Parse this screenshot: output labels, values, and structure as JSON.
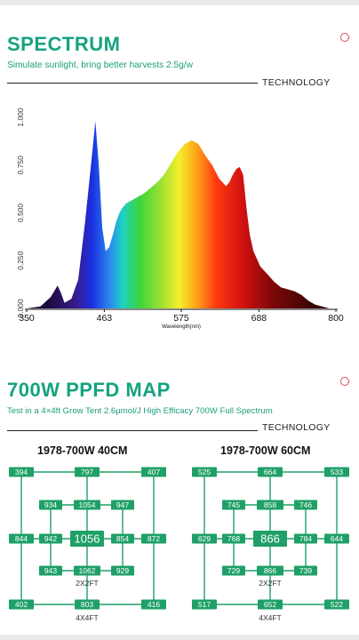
{
  "spectrum": {
    "title": "SPECTRUM",
    "subtitle": "Simulate sunlight, bring better harvests 2.5g/w",
    "technology_label": "TECHNOLOGY"
  },
  "chart_data": {
    "type": "area",
    "x_ticks": [
      350,
      463,
      575,
      688,
      800
    ],
    "y_ticks": [
      "0.000",
      "0.250",
      "0.500",
      "0.750",
      "1.000"
    ],
    "xlabel": "Wavelength(nm)",
    "xlim": [
      350,
      800
    ],
    "ylim": [
      0,
      1
    ],
    "x": [
      350,
      370,
      385,
      395,
      400,
      405,
      415,
      425,
      435,
      445,
      450,
      455,
      460,
      465,
      470,
      475,
      480,
      485,
      490,
      495,
      500,
      510,
      520,
      530,
      540,
      550,
      560,
      570,
      580,
      590,
      600,
      610,
      620,
      630,
      640,
      645,
      650,
      655,
      660,
      665,
      670,
      675,
      680,
      690,
      700,
      710,
      720,
      730,
      740,
      750,
      760,
      770,
      780,
      790
    ],
    "values": [
      0,
      0.01,
      0.06,
      0.12,
      0.08,
      0.03,
      0.05,
      0.15,
      0.45,
      0.8,
      0.98,
      0.75,
      0.42,
      0.3,
      0.32,
      0.38,
      0.45,
      0.5,
      0.53,
      0.55,
      0.56,
      0.58,
      0.6,
      0.63,
      0.66,
      0.7,
      0.76,
      0.82,
      0.86,
      0.88,
      0.86,
      0.8,
      0.75,
      0.68,
      0.64,
      0.66,
      0.7,
      0.73,
      0.74,
      0.7,
      0.52,
      0.38,
      0.3,
      0.22,
      0.18,
      0.14,
      0.11,
      0.1,
      0.09,
      0.07,
      0.04,
      0.02,
      0.01,
      0
    ],
    "gradient_stops": [
      {
        "nm": 380,
        "color": "#1a0a3a"
      },
      {
        "nm": 420,
        "color": "#3a1a8a"
      },
      {
        "nm": 445,
        "color": "#1b2fe0"
      },
      {
        "nm": 470,
        "color": "#2a86f0"
      },
      {
        "nm": 490,
        "color": "#1fd2c0"
      },
      {
        "nm": 515,
        "color": "#3dd63b"
      },
      {
        "nm": 545,
        "color": "#9be033"
      },
      {
        "nm": 572,
        "color": "#f5ef2a"
      },
      {
        "nm": 600,
        "color": "#ff9a17"
      },
      {
        "nm": 625,
        "color": "#ff3b12"
      },
      {
        "nm": 665,
        "color": "#d01010"
      },
      {
        "nm": 710,
        "color": "#7a0808"
      },
      {
        "nm": 780,
        "color": "#2a0202"
      }
    ]
  },
  "ppfd": {
    "title": "700W PPFD MAP",
    "subtitle": "Test in a 4×4ft Grow Tent 2.6μmol/J High Efficacy 700W Full Spectrum",
    "technology_label": "TECHNOLOGY",
    "maps": [
      {
        "title": "1978-700W 40CM",
        "corners": [
          "394",
          "407",
          "402",
          "416"
        ],
        "edges": [
          "797",
          "844",
          "872",
          "803"
        ],
        "inner_corners": [
          "934",
          "947",
          "943",
          "929"
        ],
        "inner_edges": [
          "1054",
          "942",
          "854",
          "1062"
        ],
        "center": "1056",
        "inner_label": "2X2FT",
        "outer_label": "4X4FT"
      },
      {
        "title": "1978-700W 60CM",
        "corners": [
          "525",
          "533",
          "517",
          "522"
        ],
        "edges": [
          "664",
          "629",
          "644",
          "652"
        ],
        "inner_corners": [
          "745",
          "746",
          "729",
          "739"
        ],
        "inner_edges": [
          "858",
          "768",
          "784",
          "866"
        ],
        "center": "866",
        "inner_label": "2X2FT",
        "outer_label": "4X4FT"
      }
    ],
    "box_color": "#1fa067"
  }
}
